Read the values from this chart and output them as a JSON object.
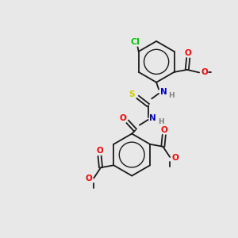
{
  "background_color": "#e8e8e8",
  "bond_color": "#1a1a1a",
  "atom_colors": {
    "O": "#ff0000",
    "N": "#0000cc",
    "S": "#cccc00",
    "Cl": "#00cc00",
    "C": "#1a1a1a",
    "H": "#808080"
  },
  "font_size": 7.5
}
